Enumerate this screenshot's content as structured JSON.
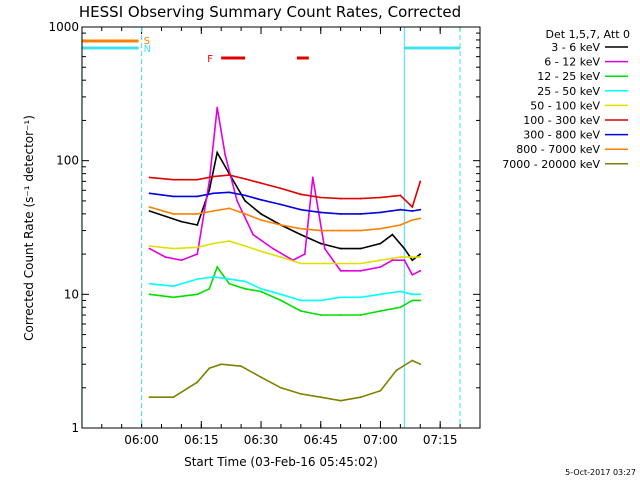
{
  "chart_data": {
    "type": "line",
    "title": "HESSI Observing Summary Count Rates, Corrected",
    "xlabel": "Start Time (03-Feb-16 05:45:02)",
    "ylabel": "Corrected Count Rate (s⁻¹ detector⁻¹)",
    "y_scale": "log",
    "ylim": [
      1,
      1000
    ],
    "xlim": [
      "05:45:02",
      "07:25:00"
    ],
    "x_ticks": [
      "06:00",
      "06:15",
      "06:30",
      "06:45",
      "07:00",
      "07:15"
    ],
    "y_ticks": [
      "1",
      "10",
      "100",
      "1000"
    ],
    "timestamp": "5-Oct-2017 03:27",
    "legend_header": "Det 1,5,7, Att 0",
    "legend_position": "right",
    "markers": {
      "S_label": "S",
      "N_label": "N",
      "F_label": "F",
      "S_color": "#ff8000",
      "N_color": "#40e0f0",
      "F_color": "#e00000",
      "S_bar": [
        "05:45",
        "06:00"
      ],
      "N_bar_1": [
        "05:45",
        "06:00"
      ],
      "N_bar_2": [
        "07:06",
        "07:20"
      ],
      "F_bars": [
        [
          "06:20",
          "06:26"
        ],
        [
          "06:39",
          "06:42"
        ]
      ],
      "night_lines_solid": [
        "05:45",
        "07:06"
      ],
      "night_lines_dashed": [
        "06:00",
        "07:20"
      ],
      "data_start": "06:02",
      "data_end": "07:10"
    },
    "series": [
      {
        "name": "3 - 6 keV",
        "color": "#000000",
        "x": [
          "06:02",
          "06:10",
          "06:14",
          "06:17",
          "06:19",
          "06:22",
          "06:26",
          "06:30",
          "06:35",
          "06:40",
          "06:45",
          "06:50",
          "06:55",
          "07:00",
          "07:03",
          "07:06",
          "07:08",
          "07:10"
        ],
        "y": [
          42,
          35,
          33,
          60,
          115,
          80,
          50,
          40,
          33,
          28,
          24,
          22,
          22,
          24,
          28,
          22,
          18,
          20
        ]
      },
      {
        "name": "6 - 12 keV",
        "color": "#e000e0",
        "x": [
          "06:02",
          "06:06",
          "06:10",
          "06:14",
          "06:17",
          "06:19",
          "06:21",
          "06:24",
          "06:28",
          "06:33",
          "06:38",
          "06:41",
          "06:43",
          "06:46",
          "06:50",
          "06:55",
          "07:00",
          "07:03",
          "07:06",
          "07:08",
          "07:10"
        ],
        "y": [
          22,
          19,
          18,
          20,
          70,
          250,
          110,
          50,
          28,
          22,
          18,
          20,
          75,
          22,
          15,
          15,
          16,
          18,
          18,
          14,
          15
        ]
      },
      {
        "name": "12 - 25 keV",
        "color": "#00e000",
        "x": [
          "06:02",
          "06:08",
          "06:14",
          "06:17",
          "06:19",
          "06:22",
          "06:26",
          "06:30",
          "06:35",
          "06:40",
          "06:45",
          "06:50",
          "06:55",
          "07:00",
          "07:05",
          "07:08",
          "07:10"
        ],
        "y": [
          10,
          9.5,
          10,
          11,
          16,
          12,
          11,
          10.5,
          9,
          7.5,
          7,
          7,
          7,
          7.5,
          8,
          9,
          9
        ]
      },
      {
        "name": "25 - 50 keV",
        "color": "#00ffff",
        "x": [
          "06:02",
          "06:08",
          "06:14",
          "06:18",
          "06:22",
          "06:26",
          "06:30",
          "06:35",
          "06:40",
          "06:45",
          "06:50",
          "06:55",
          "07:00",
          "07:05",
          "07:08",
          "07:10"
        ],
        "y": [
          12,
          11.5,
          13,
          13.5,
          13,
          12.5,
          11,
          10,
          9,
          9,
          9.5,
          9.5,
          10,
          10.5,
          10,
          10
        ]
      },
      {
        "name": "50 - 100 keV",
        "color": "#e0e000",
        "x": [
          "06:02",
          "06:08",
          "06:14",
          "06:18",
          "06:22",
          "06:26",
          "06:30",
          "06:35",
          "06:40",
          "06:45",
          "06:50",
          "06:55",
          "07:00",
          "07:05",
          "07:08",
          "07:10"
        ],
        "y": [
          23,
          22,
          22.5,
          24,
          25,
          23,
          21,
          19,
          17,
          17,
          17,
          17,
          18,
          19,
          19,
          19
        ]
      },
      {
        "name": "100 - 300 keV",
        "color": "#e00000",
        "x": [
          "06:02",
          "06:08",
          "06:14",
          "06:18",
          "06:22",
          "06:26",
          "06:30",
          "06:35",
          "06:40",
          "06:45",
          "06:50",
          "06:55",
          "07:00",
          "07:05",
          "07:08",
          "07:10"
        ],
        "y": [
          75,
          72,
          72,
          76,
          78,
          73,
          68,
          62,
          56,
          53,
          52,
          52,
          53,
          55,
          45,
          70
        ]
      },
      {
        "name": "300 - 800 keV",
        "color": "#0000e0",
        "x": [
          "06:02",
          "06:08",
          "06:14",
          "06:18",
          "06:22",
          "06:26",
          "06:30",
          "06:35",
          "06:40",
          "06:45",
          "06:50",
          "06:55",
          "07:00",
          "07:05",
          "07:08",
          "07:10"
        ],
        "y": [
          57,
          54,
          54,
          57,
          58,
          55,
          51,
          47,
          43,
          41,
          40,
          40,
          41,
          43,
          42,
          43
        ]
      },
      {
        "name": "800 - 7000 keV",
        "color": "#ff8000",
        "x": [
          "06:02",
          "06:08",
          "06:14",
          "06:18",
          "06:22",
          "06:26",
          "06:30",
          "06:35",
          "06:40",
          "06:45",
          "06:50",
          "06:55",
          "07:00",
          "07:05",
          "07:08",
          "07:10"
        ],
        "y": [
          45,
          40,
          40,
          42,
          44,
          40,
          36,
          33,
          31,
          30,
          30,
          30,
          31,
          33,
          36,
          37
        ]
      },
      {
        "name": "7000 - 20000 keV",
        "color": "#808000",
        "x": [
          "06:02",
          "06:08",
          "06:14",
          "06:17",
          "06:20",
          "06:25",
          "06:30",
          "06:35",
          "06:40",
          "06:45",
          "06:50",
          "06:55",
          "07:00",
          "07:04",
          "07:08",
          "07:10"
        ],
        "y": [
          1.7,
          1.7,
          2.2,
          2.8,
          3.0,
          2.9,
          2.4,
          2.0,
          1.8,
          1.7,
          1.6,
          1.7,
          1.9,
          2.7,
          3.2,
          3.0
        ]
      }
    ]
  }
}
